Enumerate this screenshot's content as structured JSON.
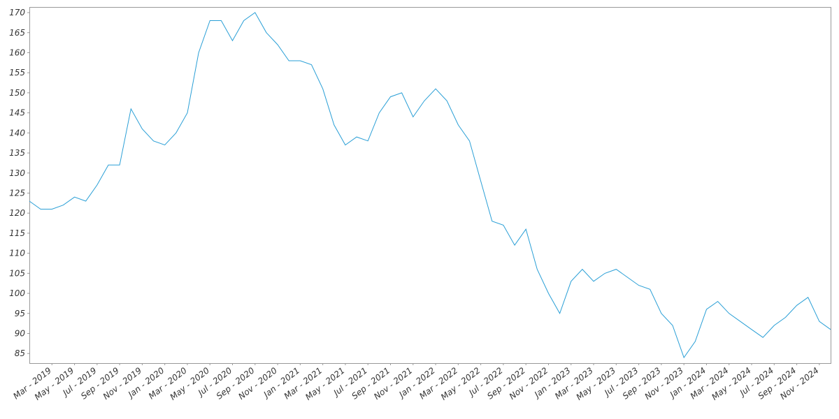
{
  "chart_data": {
    "type": "line",
    "color": "#2a9fd6",
    "categories": [
      null,
      null,
      "Mar - 2019",
      null,
      "May - 2019",
      null,
      "Jul - 2019",
      null,
      "Sep - 2019",
      null,
      "Nov - 2019",
      null,
      "Jan - 2020",
      null,
      "Mar - 2020",
      null,
      "May - 2020",
      null,
      "Jul - 2020",
      null,
      "Sep - 2020",
      null,
      "Nov - 2020",
      null,
      "Jan - 2021",
      null,
      "Mar - 2021",
      null,
      "May - 2021",
      null,
      "Jul - 2021",
      null,
      "Sep - 2021",
      null,
      "Nov - 2021",
      null,
      "Jan - 2022",
      null,
      "Mar - 2022",
      null,
      "May - 2022",
      null,
      "Jul - 2022",
      null,
      "Sep - 2022",
      null,
      "Nov - 2022",
      null,
      "Jan - 2023",
      null,
      "Mar - 2023",
      null,
      "May - 2023",
      null,
      "Jul - 2023",
      null,
      "Sep - 2023",
      null,
      "Nov - 2023",
      null,
      "Jan - 2024",
      null,
      "Mar - 2024",
      null,
      "May - 2024",
      null,
      "Jul - 2024",
      null,
      "Sep - 2024",
      null,
      "Nov - 2024",
      null
    ],
    "values": [
      123,
      121,
      121,
      122,
      124,
      123,
      127,
      132,
      132,
      146,
      141,
      138,
      137,
      140,
      145,
      160,
      168,
      168,
      163,
      168,
      170,
      165,
      162,
      158,
      158,
      157,
      151,
      142,
      137,
      139,
      138,
      145,
      149,
      150,
      144,
      148,
      151,
      148,
      142,
      138,
      128,
      118,
      117,
      112,
      116,
      106,
      100,
      95,
      103,
      106,
      103,
      105,
      106,
      104,
      102,
      101,
      95,
      92,
      84,
      88,
      96,
      98,
      95,
      93,
      91,
      89,
      92,
      94,
      97,
      99,
      93,
      91
    ],
    "ylim": [
      82.6,
      171.4
    ],
    "yticks": [
      85,
      90,
      95,
      100,
      105,
      110,
      115,
      120,
      125,
      130,
      135,
      140,
      145,
      150,
      155,
      160,
      165,
      170
    ]
  }
}
